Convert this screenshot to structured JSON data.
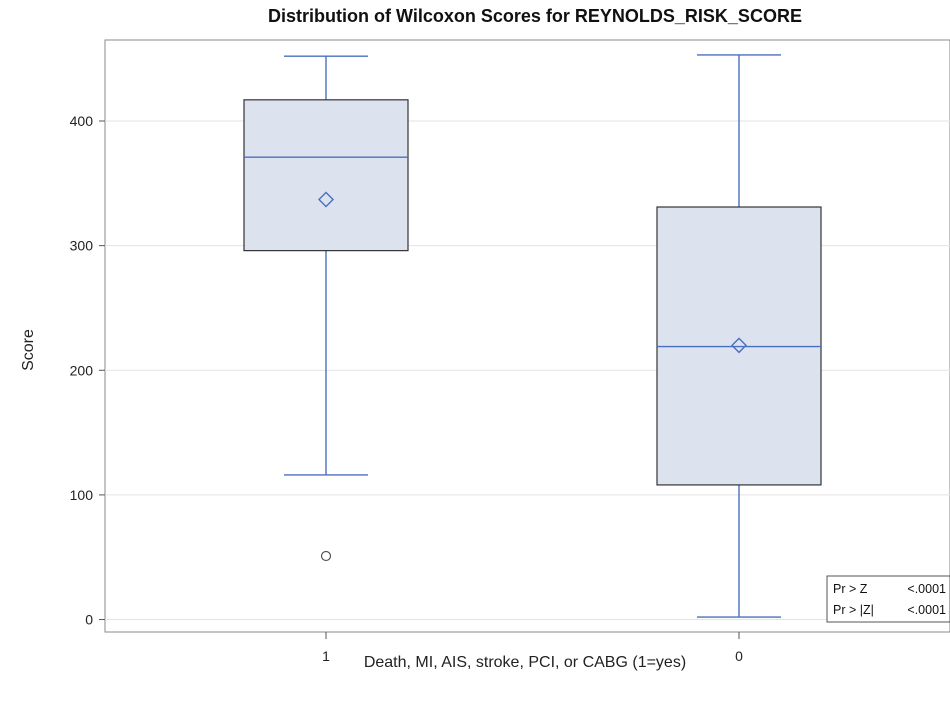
{
  "chart_data": {
    "type": "box",
    "title": "Distribution of Wilcoxon Scores for REYNOLDS_RISK_SCORE",
    "xlabel": "Death, MI, AIS, stroke, PCI, or CABG (1=yes)",
    "ylabel": "Score",
    "ylim": [
      -10,
      465
    ],
    "yticks": [
      0,
      100,
      200,
      300,
      400
    ],
    "grid": true,
    "categories": [
      "1",
      "0"
    ],
    "boxes": [
      {
        "category": "1",
        "whisker_low": 116,
        "q1": 296,
        "median": 371,
        "q3": 417,
        "whisker_high": 452,
        "mean": 337,
        "outliers": [
          51
        ]
      },
      {
        "category": "0",
        "whisker_low": 2,
        "q1": 108,
        "median": 219,
        "q3": 331,
        "whisker_high": 453,
        "mean": 220,
        "outliers": []
      }
    ],
    "stats_box": {
      "position": "bottom-right",
      "rows": [
        {
          "label": "Pr > Z",
          "value": "<.0001"
        },
        {
          "label": "Pr > |Z|",
          "value": "<.0001"
        }
      ]
    },
    "colors": {
      "box_fill": "#dce3ee",
      "box_stroke": "#333333",
      "whisker": "#4a6fc1",
      "median": "#4a6fc1",
      "mean_marker": "#4a6fc1",
      "gridline": "#e3e3e3"
    }
  }
}
